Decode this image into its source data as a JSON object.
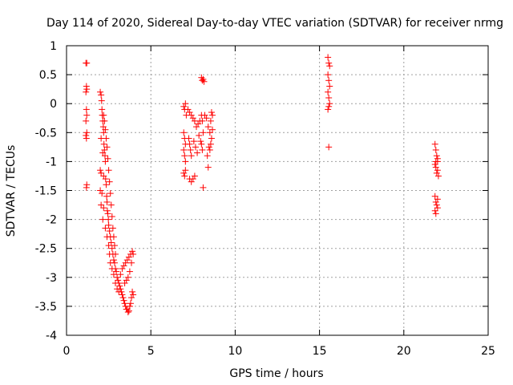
{
  "chart_data": {
    "type": "scatter",
    "title": "Day 114 of 2020, Sidereal Day-to-day VTEC variation (SDTVAR) for receiver nrmg",
    "xlabel": "GPS time / hours",
    "ylabel": "SDTVAR / TECUs",
    "xlim": [
      0,
      25
    ],
    "ylim": [
      -4,
      1
    ],
    "xticks": [
      0,
      5,
      10,
      15,
      20,
      25
    ],
    "yticks": [
      1,
      0.5,
      0,
      -0.5,
      -1,
      -1.5,
      -2,
      -2.5,
      -3,
      -3.5,
      -4
    ],
    "xtick_labels": [
      "0",
      "5",
      "10",
      "15",
      "20",
      "25"
    ],
    "ytick_labels": [
      "1",
      "0.5",
      "0",
      "-0.5",
      "-1",
      "-1.5",
      "-2",
      "-2.5",
      "-3",
      "-3.5",
      "-4"
    ],
    "grid": true,
    "marker": "+",
    "marker_color": "#ff0000",
    "series": [
      {
        "name": "SDTVAR",
        "points": [
          [
            1.15,
            0.7
          ],
          [
            1.2,
            0.7
          ],
          [
            1.18,
            0.3
          ],
          [
            1.2,
            0.25
          ],
          [
            1.15,
            0.2
          ],
          [
            1.18,
            -0.1
          ],
          [
            1.2,
            -0.2
          ],
          [
            1.15,
            -0.3
          ],
          [
            1.2,
            -0.5
          ],
          [
            1.15,
            -0.55
          ],
          [
            1.18,
            -0.6
          ],
          [
            1.2,
            -1.4
          ],
          [
            1.18,
            -1.45
          ],
          [
            2.0,
            0.2
          ],
          [
            2.05,
            0.15
          ],
          [
            2.08,
            0.05
          ],
          [
            2.1,
            -0.1
          ],
          [
            2.12,
            -0.2
          ],
          [
            2.15,
            -0.3
          ],
          [
            2.18,
            -0.4
          ],
          [
            2.2,
            -0.5
          ],
          [
            2.05,
            -0.6
          ],
          [
            2.22,
            -0.7
          ],
          [
            2.25,
            -0.8
          ],
          [
            2.15,
            -0.85
          ],
          [
            2.28,
            -0.9
          ],
          [
            2.3,
            -1.0
          ],
          [
            2.0,
            -1.15
          ],
          [
            2.05,
            -1.2
          ],
          [
            2.2,
            -1.25
          ],
          [
            2.32,
            -1.3
          ],
          [
            2.35,
            -1.4
          ],
          [
            2.0,
            -1.5
          ],
          [
            2.1,
            -1.55
          ],
          [
            2.38,
            -1.6
          ],
          [
            2.4,
            -1.7
          ],
          [
            2.05,
            -1.75
          ],
          [
            2.2,
            -1.8
          ],
          [
            2.42,
            -1.85
          ],
          [
            2.45,
            -1.9
          ],
          [
            2.15,
            -2.0
          ],
          [
            2.48,
            -2.0
          ],
          [
            2.5,
            -2.1
          ],
          [
            2.3,
            -2.15
          ],
          [
            2.55,
            -2.2
          ],
          [
            2.4,
            -2.3
          ],
          [
            2.6,
            -2.3
          ],
          [
            2.65,
            -2.4
          ],
          [
            2.5,
            -2.45
          ],
          [
            2.7,
            -2.5
          ],
          [
            2.55,
            -2.6
          ],
          [
            2.75,
            -2.6
          ],
          [
            2.8,
            -2.7
          ],
          [
            2.6,
            -2.75
          ],
          [
            2.85,
            -2.75
          ],
          [
            2.7,
            -2.85
          ],
          [
            2.9,
            -2.85
          ],
          [
            2.95,
            -2.9
          ],
          [
            2.8,
            -2.95
          ],
          [
            3.0,
            -3.0
          ],
          [
            3.05,
            -3.05
          ],
          [
            2.9,
            -3.1
          ],
          [
            3.1,
            -3.1
          ],
          [
            3.15,
            -3.15
          ],
          [
            3.0,
            -3.2
          ],
          [
            3.2,
            -3.2
          ],
          [
            3.25,
            -3.25
          ],
          [
            3.1,
            -3.25
          ],
          [
            3.3,
            -3.3
          ],
          [
            3.35,
            -3.35
          ],
          [
            3.4,
            -3.4
          ],
          [
            3.45,
            -3.45
          ],
          [
            3.5,
            -3.5
          ],
          [
            3.55,
            -3.55
          ],
          [
            3.6,
            -3.55
          ],
          [
            3.65,
            -3.6
          ],
          [
            3.7,
            -3.58
          ],
          [
            3.75,
            -3.5
          ],
          [
            3.2,
            -2.95
          ],
          [
            3.3,
            -2.85
          ],
          [
            3.4,
            -2.8
          ],
          [
            3.5,
            -2.75
          ],
          [
            3.6,
            -2.7
          ],
          [
            3.7,
            -2.65
          ],
          [
            3.8,
            -2.6
          ],
          [
            3.9,
            -2.55
          ],
          [
            3.95,
            -2.6
          ],
          [
            3.85,
            -2.75
          ],
          [
            3.75,
            -2.9
          ],
          [
            3.65,
            -3.0
          ],
          [
            3.55,
            -3.05
          ],
          [
            3.45,
            -3.1
          ],
          [
            3.9,
            -3.25
          ],
          [
            3.95,
            -3.3
          ],
          [
            3.85,
            -3.35
          ],
          [
            3.8,
            -3.45
          ],
          [
            2.2,
            -0.2
          ],
          [
            2.25,
            -0.3
          ],
          [
            2.3,
            -0.45
          ],
          [
            2.35,
            -0.6
          ],
          [
            2.4,
            -0.75
          ],
          [
            2.45,
            -0.95
          ],
          [
            2.5,
            -1.15
          ],
          [
            2.55,
            -1.35
          ],
          [
            2.6,
            -1.55
          ],
          [
            2.65,
            -1.75
          ],
          [
            2.7,
            -1.95
          ],
          [
            2.75,
            -2.15
          ],
          [
            2.8,
            -2.3
          ],
          [
            2.85,
            -2.45
          ],
          [
            2.9,
            -2.6
          ],
          [
            6.95,
            -0.05
          ],
          [
            7.0,
            -0.1
          ],
          [
            7.05,
            0.0
          ],
          [
            7.1,
            -0.2
          ],
          [
            6.95,
            -0.5
          ],
          [
            7.0,
            -0.6
          ],
          [
            7.05,
            -0.7
          ],
          [
            6.95,
            -0.8
          ],
          [
            7.0,
            -0.9
          ],
          [
            7.05,
            -1.0
          ],
          [
            6.95,
            -1.2
          ],
          [
            7.0,
            -1.25
          ],
          [
            7.05,
            -1.15
          ],
          [
            7.2,
            -0.1
          ],
          [
            7.3,
            -0.15
          ],
          [
            7.4,
            -0.2
          ],
          [
            7.5,
            -0.25
          ],
          [
            7.6,
            -0.3
          ],
          [
            7.25,
            -0.6
          ],
          [
            7.3,
            -0.7
          ],
          [
            7.35,
            -0.8
          ],
          [
            7.4,
            -0.9
          ],
          [
            7.3,
            -1.3
          ],
          [
            7.4,
            -1.35
          ],
          [
            7.5,
            -1.3
          ],
          [
            7.6,
            -1.25
          ],
          [
            7.7,
            -0.4
          ],
          [
            7.8,
            -0.35
          ],
          [
            7.9,
            -0.3
          ],
          [
            8.0,
            0.45
          ],
          [
            8.05,
            0.4
          ],
          [
            8.1,
            0.42
          ],
          [
            8.15,
            0.38
          ],
          [
            8.0,
            -0.2
          ],
          [
            8.05,
            -0.3
          ],
          [
            8.1,
            -0.5
          ],
          [
            8.0,
            -0.7
          ],
          [
            8.05,
            -0.8
          ],
          [
            8.1,
            -1.45
          ],
          [
            8.2,
            -0.2
          ],
          [
            8.3,
            -0.25
          ],
          [
            8.4,
            -0.4
          ],
          [
            8.5,
            -0.5
          ],
          [
            8.35,
            -0.9
          ],
          [
            8.4,
            -1.1
          ],
          [
            8.45,
            -0.75
          ],
          [
            8.5,
            -0.8
          ],
          [
            8.55,
            -0.7
          ],
          [
            8.6,
            -0.6
          ],
          [
            8.65,
            -0.2
          ],
          [
            8.6,
            -0.15
          ],
          [
            8.55,
            -0.3
          ],
          [
            8.65,
            -0.45
          ],
          [
            7.55,
            -0.65
          ],
          [
            7.65,
            -0.75
          ],
          [
            7.75,
            -0.85
          ],
          [
            7.85,
            -0.55
          ],
          [
            7.95,
            -0.65
          ],
          [
            15.5,
            0.8
          ],
          [
            15.55,
            0.7
          ],
          [
            15.6,
            0.65
          ],
          [
            15.5,
            0.5
          ],
          [
            15.55,
            0.4
          ],
          [
            15.6,
            0.3
          ],
          [
            15.5,
            0.2
          ],
          [
            15.55,
            0.1
          ],
          [
            15.6,
            0.0
          ],
          [
            15.5,
            -0.1
          ],
          [
            15.55,
            -0.05
          ],
          [
            15.55,
            -0.75
          ],
          [
            21.85,
            -0.7
          ],
          [
            21.9,
            -0.8
          ],
          [
            21.95,
            -0.9
          ],
          [
            22.0,
            -1.0
          ],
          [
            21.85,
            -1.05
          ],
          [
            21.9,
            -1.1
          ],
          [
            22.0,
            -1.15
          ],
          [
            21.95,
            -1.2
          ],
          [
            22.05,
            -1.25
          ],
          [
            21.9,
            -1.0
          ],
          [
            22.0,
            -0.95
          ],
          [
            21.85,
            -1.6
          ],
          [
            21.9,
            -1.7
          ],
          [
            21.95,
            -1.75
          ],
          [
            22.0,
            -1.8
          ],
          [
            21.85,
            -1.85
          ],
          [
            21.9,
            -1.9
          ],
          [
            22.0,
            -1.65
          ]
        ]
      }
    ]
  }
}
